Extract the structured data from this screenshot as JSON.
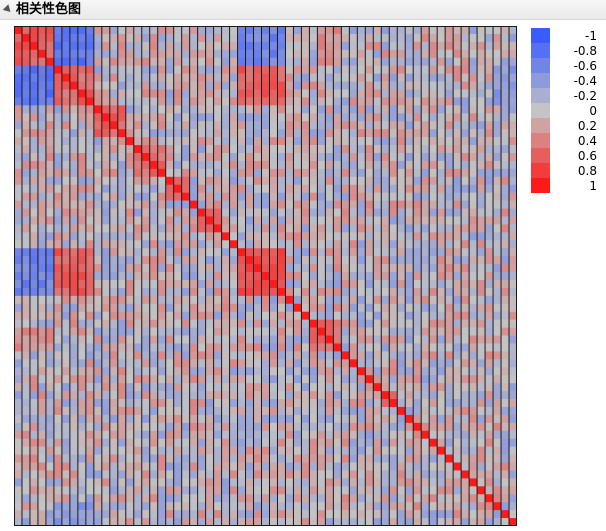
{
  "panel": {
    "title": "相关性色图"
  },
  "chart_data": {
    "type": "heatmap",
    "title": "相关性色图",
    "n_variables": 63,
    "value_range": [
      -1,
      1
    ],
    "diagonal_value": 1,
    "blocks": [
      {
        "from": 0,
        "to": 4,
        "within": 0.6
      },
      {
        "from": 5,
        "to": 9,
        "within": 0.55
      },
      {
        "from": 10,
        "to": 13,
        "within": 0.6
      },
      {
        "from": 15,
        "to": 18,
        "within": 0.55
      },
      {
        "from": 19,
        "to": 21,
        "within": 0.5
      },
      {
        "from": 23,
        "to": 25,
        "within": 0.55
      },
      {
        "from": 28,
        "to": 33,
        "within": 0.7
      },
      {
        "from": 37,
        "to": 40,
        "within": 0.55
      },
      {
        "from": 46,
        "to": 47,
        "within": 0.5
      }
    ],
    "cross_correlations": [
      {
        "rows": [
          0,
          4
        ],
        "cols": [
          5,
          9
        ],
        "value": -0.75
      },
      {
        "rows": [
          0,
          4
        ],
        "cols": [
          28,
          33
        ],
        "value": -0.6
      },
      {
        "rows": [
          5,
          9
        ],
        "cols": [
          28,
          33
        ],
        "value": 0.6
      },
      {
        "rows": [
          0,
          4
        ],
        "cols": [
          38,
          40
        ],
        "value": 0.3
      },
      {
        "rows": [
          5,
          9
        ],
        "cols": [
          60,
          62
        ],
        "value": -0.4
      }
    ],
    "colorscale": {
      "negative": "#3a5bff",
      "zero": "#c4c4c4",
      "positive": "#ff1a1a",
      "grid": "#1a1a1a"
    },
    "legend": {
      "title": "",
      "placement": "right",
      "ticks": [
        "-1",
        "-0.8",
        "-0.6",
        "-0.4",
        "-0.2",
        "0",
        "0.2",
        "0.4",
        "0.6",
        "0.8",
        "1"
      ],
      "values": [
        -1,
        -0.8,
        -0.6,
        -0.4,
        -0.2,
        0,
        0.2,
        0.4,
        0.6,
        0.8,
        1
      ]
    }
  }
}
